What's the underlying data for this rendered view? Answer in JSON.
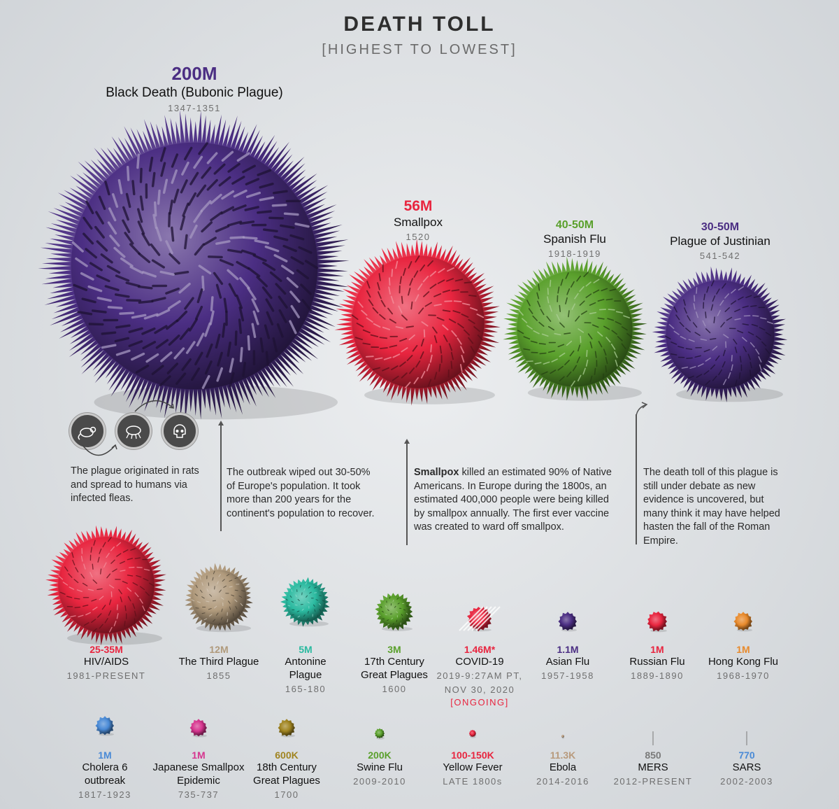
{
  "header": {
    "title": "DEATH TOLL",
    "subtitle": "[HIGHEST TO LOWEST]"
  },
  "chart_data": {
    "type": "bubble",
    "title": "DEATH TOLL",
    "subtitle": "[HIGHEST TO LOWEST]",
    "series": [
      {
        "value": "200M",
        "name": "Black Death (Bubonic Plague)",
        "years": "1347-1351",
        "color": "#4b2e83",
        "deaths": 200000000
      },
      {
        "value": "56M",
        "name": "Smallpox",
        "years": "1520",
        "color": "#e8253f",
        "deaths": 56000000
      },
      {
        "value": "40-50M",
        "name": "Spanish Flu",
        "years": "1918-1919",
        "color": "#5aa02c",
        "deaths": 45000000
      },
      {
        "value": "30-50M",
        "name": "Plague of Justinian",
        "years": "541-542",
        "color": "#4b2e83",
        "deaths": 40000000
      },
      {
        "value": "25-35M",
        "name": "HIV/AIDS",
        "years": "1981-PRESENT",
        "color": "#e8253f",
        "deaths": 30000000
      },
      {
        "value": "12M",
        "name": "The Third Plague",
        "years": "1855",
        "color": "#b09a7c",
        "deaths": 12000000
      },
      {
        "value": "5M",
        "name": "Antonine Plague",
        "years": "165-180",
        "color": "#2bbaa0",
        "deaths": 5000000
      },
      {
        "value": "3M",
        "name": "17th Century Great Plagues",
        "years": "1600",
        "color": "#5aa02c",
        "deaths": 3000000
      },
      {
        "value": "1.46M*",
        "name": "COVID-19",
        "years": "2019-9:27AM PT, NOV 30, 2020",
        "status": "[ONGOING]",
        "color": "#e8253f",
        "deaths": 1460000
      },
      {
        "value": "1.1M",
        "name": "Asian Flu",
        "years": "1957-1958",
        "color": "#4b2e83",
        "deaths": 1100000
      },
      {
        "value": "1M",
        "name": "Russian Flu",
        "years": "1889-1890",
        "color": "#e8253f",
        "deaths": 1000000
      },
      {
        "value": "1M",
        "name": "Hong Kong Flu",
        "years": "1968-1970",
        "color": "#e88a2c",
        "deaths": 1000000
      },
      {
        "value": "1M",
        "name": "Cholera 6 outbreak",
        "years": "1817-1923",
        "color": "#4a8ad6",
        "deaths": 1000000
      },
      {
        "value": "1M",
        "name": "Japanese Smallpox Epidemic",
        "years": "735-737",
        "color": "#d6358f",
        "deaths": 1000000
      },
      {
        "value": "600K",
        "name": "18th Century Great Plagues",
        "years": "1700",
        "color": "#a08420",
        "deaths": 600000
      },
      {
        "value": "200K",
        "name": "Swine Flu",
        "years": "2009-2010",
        "color": "#5aa02c",
        "deaths": 200000
      },
      {
        "value": "100-150K",
        "name": "Yellow Fever",
        "years": "LATE 1800s",
        "color": "#e8253f",
        "deaths": 125000
      },
      {
        "value": "11.3K",
        "name": "Ebola",
        "years": "2014-2016",
        "color": "#b89a7c",
        "deaths": 11300
      },
      {
        "value": "850",
        "name": "MERS",
        "years": "2012-PRESENT",
        "color": "#7a7a7a",
        "deaths": 850
      },
      {
        "value": "770",
        "name": "SARS",
        "years": "2002-2003",
        "color": "#4a8ad6",
        "deaths": 770
      }
    ]
  },
  "notes": {
    "plague_origin": "The plague originated in rats and spread to humans via infected fleas.",
    "outbreak": "The outbreak wiped out 30-50% of Europe's population. It took more than 200 years for the continent's population to recover.",
    "smallpox_bold": "Smallpox",
    "smallpox": " killed an estimated 90% of Native Americans. In Europe during the 1800s, an estimated 400,000 people were being killed by smallpox annually. The first ever vaccine was created to ward off smallpox.",
    "justinian": "The death toll of this plague is still under debate as new evidence is uncovered, but many think it may have helped hasten the fall of the Roman Empire."
  },
  "icons": [
    "rat-icon",
    "flea-icon",
    "skull-icon"
  ]
}
